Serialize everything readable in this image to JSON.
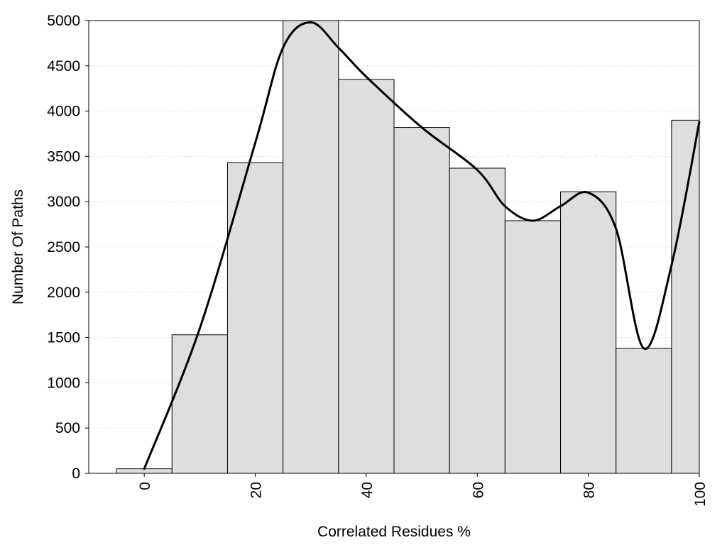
{
  "chart_data": {
    "type": "bar",
    "title": "",
    "xlabel": "Correlated Residues %",
    "ylabel": "Number Of Paths",
    "bin_width": 10,
    "categories": [
      0,
      10,
      20,
      30,
      40,
      50,
      60,
      70,
      80,
      90,
      100
    ],
    "values": [
      50,
      1530,
      3430,
      5000,
      4350,
      3820,
      3370,
      2790,
      3110,
      1380,
      3900
    ],
    "xlim": [
      -10,
      100
    ],
    "ylim": [
      0,
      5000
    ],
    "x_ticks": [
      0,
      20,
      40,
      60,
      80,
      100
    ],
    "y_ticks": [
      0,
      500,
      1000,
      1500,
      2000,
      2500,
      3000,
      3500,
      4000,
      4500,
      5000
    ],
    "grid": "horizontal-dotted",
    "legend": "none",
    "series": [
      {
        "type": "line",
        "x": [
          0,
          10,
          20,
          25,
          30,
          35,
          40,
          50,
          60,
          65,
          70,
          75,
          80,
          85,
          90,
          95,
          100
        ],
        "values": [
          50,
          1600,
          3650,
          4700,
          4980,
          4700,
          4380,
          3820,
          3350,
          2950,
          2790,
          2950,
          3100,
          2700,
          1380,
          2300,
          3880
        ]
      }
    ],
    "colors": {
      "bar_fill": "#dedede",
      "bar_stroke": "#000000",
      "curve": "#000000"
    }
  }
}
